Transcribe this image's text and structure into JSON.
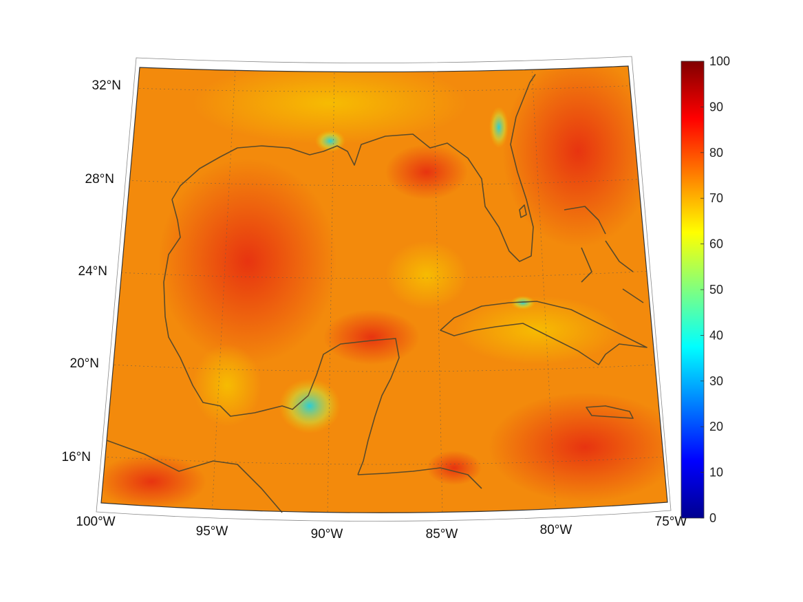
{
  "map": {
    "projection": "conic",
    "extent": {
      "lon": [
        -100,
        -75
      ],
      "lat": [
        14,
        33
      ]
    },
    "grid": true,
    "colormap": "jet",
    "latitude_labels": [
      "32°N",
      "28°N",
      "24°N",
      "20°N",
      "16°N"
    ],
    "longitude_labels": [
      "100°W",
      "95°W",
      "90°W",
      "85°W",
      "80°W",
      "75°W"
    ],
    "coastline_color": "#5a4a2a",
    "colorbar": {
      "range": [
        0,
        100
      ],
      "tick_labels": [
        "100",
        "90",
        "80",
        "70",
        "60",
        "50",
        "40",
        "30",
        "20",
        "10",
        "0"
      ]
    }
  }
}
